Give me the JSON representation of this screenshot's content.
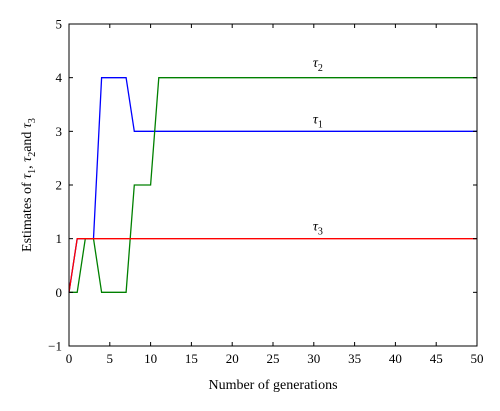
{
  "chart_data": {
    "type": "line",
    "xlabel": "Number of generations",
    "ylabel_parts": [
      "Estimates of ",
      "τ",
      "1",
      ", ",
      "τ",
      "2",
      "and ",
      "τ",
      "3"
    ],
    "xlim": [
      0,
      50
    ],
    "ylim": [
      -1,
      5
    ],
    "xticks": [
      0,
      5,
      10,
      15,
      20,
      25,
      30,
      35,
      40,
      45,
      50
    ],
    "yticks": [
      -1,
      0,
      1,
      2,
      3,
      4,
      5
    ],
    "grid": false,
    "legend": "none",
    "series": [
      {
        "label_symbol": "τ",
        "label_sub": "1",
        "color": "#0000ff",
        "x": [
          0,
          1,
          2,
          3,
          4,
          5,
          6,
          7,
          8,
          9,
          10,
          11,
          50
        ],
        "y": [
          0,
          1,
          1,
          1,
          4,
          4,
          4,
          4,
          3,
          3,
          3,
          3,
          3
        ],
        "label_at": [
          30.5,
          3.15
        ]
      },
      {
        "label_symbol": "τ",
        "label_sub": "2",
        "color": "#008000",
        "x": [
          0,
          1,
          2,
          3,
          4,
          5,
          6,
          7,
          8,
          9,
          10,
          11,
          50
        ],
        "y": [
          0,
          0,
          1,
          1,
          0,
          0,
          0,
          0,
          2,
          2,
          2,
          4,
          4
        ],
        "label_at": [
          30.5,
          4.2
        ]
      },
      {
        "label_symbol": "τ",
        "label_sub": "3",
        "color": "#ff0000",
        "x": [
          0,
          1,
          50
        ],
        "y": [
          0,
          1,
          1
        ],
        "label_at": [
          30.5,
          1.15
        ]
      }
    ]
  }
}
